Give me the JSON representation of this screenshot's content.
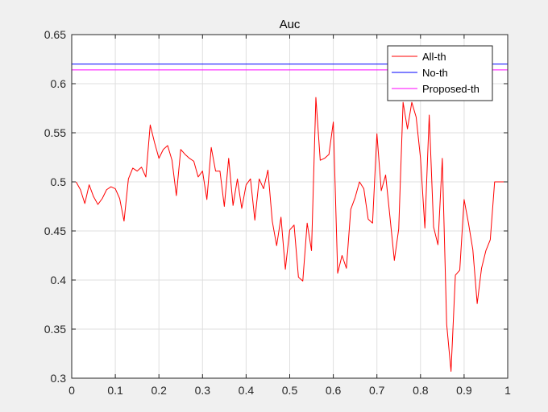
{
  "chart_data": {
    "type": "line",
    "title": "Auc",
    "xlabel": "",
    "ylabel": "",
    "xlim": [
      0,
      1
    ],
    "ylim": [
      0.3,
      0.65
    ],
    "xticks": [
      "0",
      "0.1",
      "0.2",
      "0.3",
      "0.4",
      "0.5",
      "0.6",
      "0.7",
      "0.8",
      "0.9",
      "1"
    ],
    "yticks": [
      "0.3",
      "0.35",
      "0.4",
      "0.45",
      "0.5",
      "0.55",
      "0.6",
      "0.65"
    ],
    "grid": true,
    "legend_position": "top-right",
    "series": [
      {
        "name": "All-th",
        "color": "#ff0000",
        "x": [
          0.01,
          0.02,
          0.03,
          0.04,
          0.05,
          0.06,
          0.07,
          0.08,
          0.09,
          0.1,
          0.11,
          0.12,
          0.13,
          0.14,
          0.15,
          0.16,
          0.17,
          0.18,
          0.19,
          0.2,
          0.21,
          0.22,
          0.23,
          0.24,
          0.25,
          0.26,
          0.27,
          0.28,
          0.29,
          0.3,
          0.31,
          0.32,
          0.33,
          0.34,
          0.35,
          0.36,
          0.37,
          0.38,
          0.39,
          0.4,
          0.41,
          0.42,
          0.43,
          0.44,
          0.45,
          0.46,
          0.47,
          0.48,
          0.49,
          0.5,
          0.51,
          0.52,
          0.53,
          0.54,
          0.55,
          0.56,
          0.57,
          0.58,
          0.59,
          0.6,
          0.61,
          0.62,
          0.63,
          0.64,
          0.65,
          0.66,
          0.67,
          0.68,
          0.69,
          0.7,
          0.71,
          0.72,
          0.73,
          0.74,
          0.75,
          0.76,
          0.77,
          0.78,
          0.79,
          0.8,
          0.81,
          0.82,
          0.83,
          0.84,
          0.85,
          0.86,
          0.87,
          0.88,
          0.89,
          0.9,
          0.91,
          0.92,
          0.93,
          0.94,
          0.95,
          0.96,
          0.97,
          0.98,
          0.99,
          1.0
        ],
        "values": [
          0.5,
          0.492,
          0.478,
          0.497,
          0.485,
          0.477,
          0.483,
          0.492,
          0.495,
          0.493,
          0.483,
          0.46,
          0.503,
          0.514,
          0.511,
          0.515,
          0.505,
          0.558,
          0.54,
          0.524,
          0.533,
          0.537,
          0.522,
          0.486,
          0.533,
          0.528,
          0.524,
          0.521,
          0.505,
          0.511,
          0.482,
          0.535,
          0.511,
          0.511,
          0.475,
          0.524,
          0.476,
          0.503,
          0.473,
          0.497,
          0.503,
          0.461,
          0.503,
          0.493,
          0.512,
          0.46,
          0.435,
          0.464,
          0.411,
          0.451,
          0.456,
          0.403,
          0.399,
          0.458,
          0.43,
          0.586,
          0.522,
          0.524,
          0.528,
          0.561,
          0.407,
          0.425,
          0.412,
          0.472,
          0.484,
          0.5,
          0.493,
          0.462,
          0.458,
          0.549,
          0.491,
          0.507,
          0.464,
          0.42,
          0.452,
          0.581,
          0.554,
          0.581,
          0.566,
          0.524,
          0.453,
          0.568,
          0.454,
          0.436,
          0.524,
          0.355,
          0.307,
          0.405,
          0.41,
          0.482,
          0.458,
          0.431,
          0.376,
          0.412,
          0.43,
          0.441,
          0.5,
          0.5,
          0.5,
          0.5
        ]
      },
      {
        "name": "No-th",
        "color": "#0000ff",
        "x": [
          0,
          1
        ],
        "values": [
          0.62,
          0.62
        ]
      },
      {
        "name": "Proposed-th",
        "color": "#ff00ff",
        "x": [
          0,
          1
        ],
        "values": [
          0.614,
          0.614
        ]
      }
    ]
  }
}
